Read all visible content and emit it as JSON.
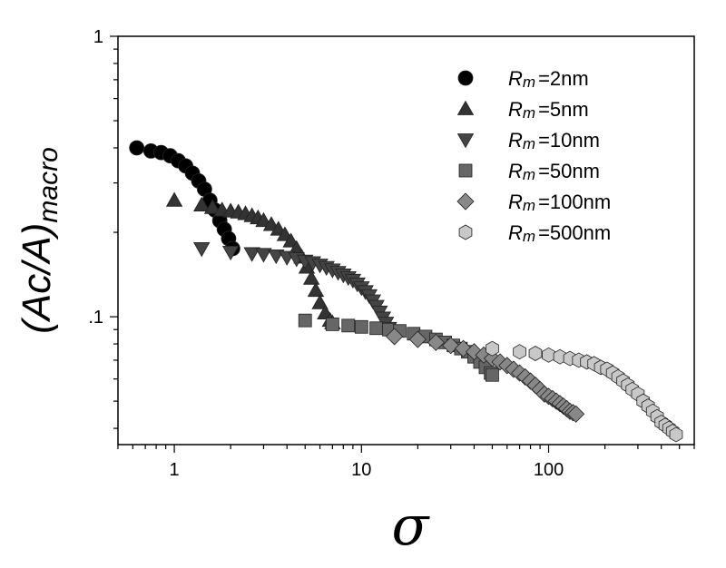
{
  "chart_data": {
    "type": "scatter",
    "xscale": "log",
    "yscale": "log",
    "xlim": [
      0.5,
      600
    ],
    "ylim": [
      0.035,
      1
    ],
    "xlabel": "σ",
    "ylabel": {
      "main": "(Ac/A)",
      "sub": "macro"
    },
    "x_ticks": [
      {
        "value": 1,
        "label": "1"
      },
      {
        "value": 10,
        "label": "10"
      },
      {
        "value": 100,
        "label": "100"
      }
    ],
    "y_ticks": [
      {
        "value": 0.1,
        "label": ".1"
      },
      {
        "value": 1,
        "label": "1"
      }
    ],
    "grid": false,
    "legend_position": "top-right",
    "legend_prefix": {
      "main": "R",
      "sub": "m"
    },
    "series": [
      {
        "name": "=2nm",
        "marker": "circle",
        "color": "#000000",
        "x": [
          0.63,
          0.75,
          0.85,
          0.95,
          1.05,
          1.15,
          1.25,
          1.35,
          1.45,
          1.55,
          1.65,
          1.75,
          1.85,
          1.95,
          2.05
        ],
        "y": [
          0.4,
          0.39,
          0.385,
          0.375,
          0.36,
          0.345,
          0.325,
          0.305,
          0.285,
          0.26,
          0.24,
          0.22,
          0.205,
          0.19,
          0.175
        ]
      },
      {
        "name": "=5nm",
        "marker": "triangle-up",
        "color": "#333333",
        "x": [
          1.0,
          1.4,
          1.6,
          1.8,
          2.0,
          2.2,
          2.4,
          2.6,
          2.8,
          3.0,
          3.3,
          3.6,
          3.9,
          4.2,
          4.5,
          4.8,
          5.1,
          5.4,
          5.7,
          6.0,
          6.4,
          6.8,
          7.0
        ],
        "y": [
          0.26,
          0.25,
          0.245,
          0.24,
          0.238,
          0.236,
          0.233,
          0.229,
          0.225,
          0.22,
          0.213,
          0.205,
          0.196,
          0.186,
          0.175,
          0.163,
          0.15,
          0.137,
          0.124,
          0.112,
          0.103,
          0.097,
          0.095
        ]
      },
      {
        "name": "=10nm",
        "marker": "triangle-down",
        "color": "#444444",
        "x": [
          1.4,
          2.0,
          2.6,
          3.0,
          3.5,
          4.0,
          4.5,
          5.0,
          5.5,
          6.0,
          6.5,
          7.0,
          7.5,
          8.0,
          8.5,
          9.0,
          9.5,
          10.0,
          10.5,
          11.0,
          11.5,
          12.0,
          12.5,
          13.0,
          13.5,
          14.0,
          14.5
        ],
        "y": [
          0.175,
          0.17,
          0.168,
          0.167,
          0.165,
          0.163,
          0.161,
          0.158,
          0.156,
          0.153,
          0.15,
          0.147,
          0.144,
          0.141,
          0.138,
          0.135,
          0.131,
          0.127,
          0.123,
          0.119,
          0.114,
          0.109,
          0.104,
          0.099,
          0.095,
          0.091,
          0.088
        ]
      },
      {
        "name": "=50nm",
        "marker": "square",
        "color": "#666666",
        "x": [
          5.0,
          7.0,
          8.5,
          10.0,
          12.0,
          14.0,
          16.0,
          19.0,
          22.0,
          25.0,
          28.0,
          31.0,
          34.0,
          37.0,
          40.0,
          43.0,
          46.0,
          49.0,
          50.0
        ],
        "y": [
          0.097,
          0.094,
          0.093,
          0.092,
          0.091,
          0.09,
          0.089,
          0.087,
          0.085,
          0.083,
          0.081,
          0.079,
          0.077,
          0.075,
          0.072,
          0.069,
          0.066,
          0.063,
          0.062
        ]
      },
      {
        "name": "=100nm",
        "marker": "diamond",
        "color": "#888888",
        "x": [
          15,
          20,
          25,
          30,
          35,
          40,
          45,
          50,
          55,
          60,
          65,
          70,
          75,
          80,
          85,
          90,
          95,
          100,
          105,
          110,
          115,
          120,
          125,
          130,
          135,
          140
        ],
        "y": [
          0.085,
          0.083,
          0.081,
          0.079,
          0.077,
          0.075,
          0.073,
          0.071,
          0.069,
          0.067,
          0.065,
          0.063,
          0.061,
          0.059,
          0.057,
          0.055,
          0.053,
          0.052,
          0.051,
          0.05,
          0.049,
          0.048,
          0.047,
          0.046,
          0.0455,
          0.045
        ]
      },
      {
        "name": "=500nm",
        "marker": "hexagon",
        "color": "#c8c8c8",
        "x": [
          50,
          70,
          85,
          100,
          115,
          130,
          145,
          160,
          175,
          190,
          205,
          220,
          235,
          250,
          265,
          280,
          300,
          320,
          340,
          360,
          380,
          400,
          420,
          440,
          460,
          480
        ],
        "y": [
          0.077,
          0.075,
          0.074,
          0.073,
          0.072,
          0.071,
          0.07,
          0.069,
          0.068,
          0.066,
          0.065,
          0.063,
          0.061,
          0.059,
          0.057,
          0.055,
          0.053,
          0.05,
          0.048,
          0.046,
          0.044,
          0.042,
          0.041,
          0.04,
          0.039,
          0.038
        ]
      }
    ]
  }
}
